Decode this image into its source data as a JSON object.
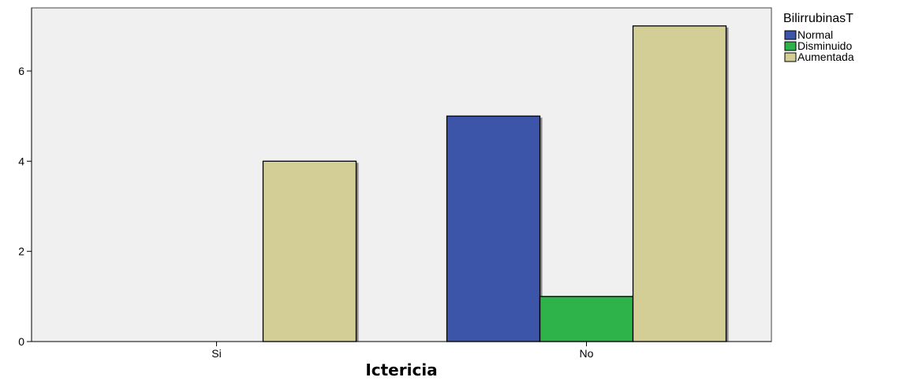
{
  "chart_data": {
    "type": "bar",
    "categories": [
      "Si",
      "No"
    ],
    "series": [
      {
        "name": "Normal",
        "values": [
          0,
          5
        ],
        "color": "#3c55a8"
      },
      {
        "name": "Disminuido",
        "values": [
          0,
          1
        ],
        "color": "#2db34a"
      },
      {
        "name": "Aumentada",
        "values": [
          4,
          7
        ],
        "color": "#d3cd96"
      }
    ],
    "title": "",
    "xlabel": "Ictericia",
    "ylabel": "",
    "ylim": [
      0,
      7.4
    ],
    "yticks": [
      0,
      2,
      4,
      6
    ],
    "grid": false,
    "legend_title": "BilirrubinasT",
    "legend_position": "top-right",
    "plot_background": "#f0f0f0"
  }
}
